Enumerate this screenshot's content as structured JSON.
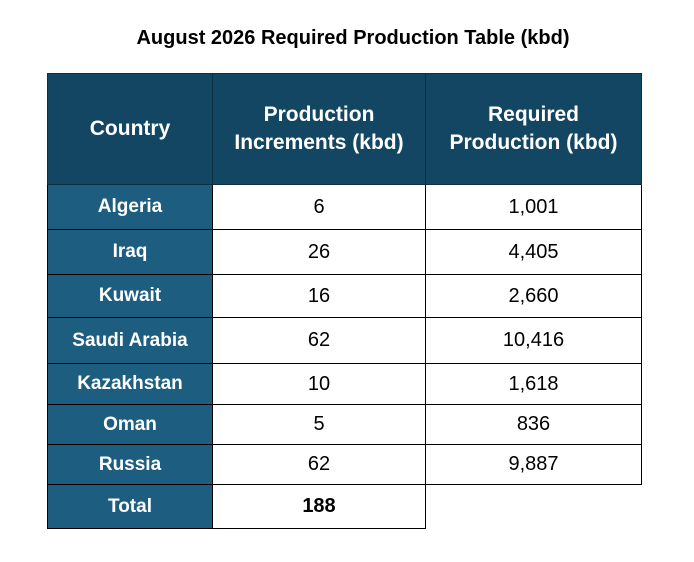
{
  "title": "August 2026 Required Production Table (kbd)",
  "table": {
    "header": [
      "Country",
      "Production Increments (kbd)",
      "Required Production (kbd)"
    ],
    "rows": [
      [
        "Algeria",
        "6",
        "1,001"
      ],
      [
        "Iraq",
        "26",
        "4,405"
      ],
      [
        "Kuwait",
        "16",
        "2,660"
      ],
      [
        "Saudi Arabia",
        "62",
        "10,416"
      ],
      [
        "Kazakhstan",
        "10",
        "1,618"
      ],
      [
        "Oman",
        "5",
        "836"
      ],
      [
        "Russia",
        "62",
        "9,887"
      ]
    ],
    "total": [
      "Total",
      "188"
    ]
  }
}
